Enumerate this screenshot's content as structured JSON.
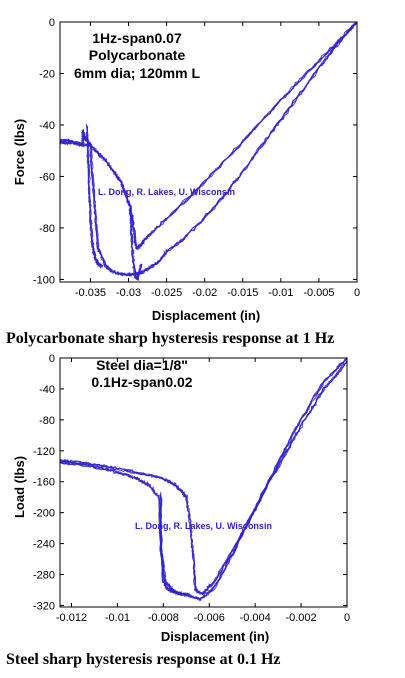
{
  "colors": {
    "trace": "#3322cc",
    "axis": "#000000",
    "credit": "#3322cc"
  },
  "chart_data": [
    {
      "type": "line",
      "annotations": [
        "1Hz-span0.07",
        "Polycarbonate",
        "6mm dia; 120mm L"
      ],
      "credit": "L. Dong, R. Lakes, U. Wisconsin",
      "xlabel": "Displacement (in)",
      "ylabel": "Force (lbs)",
      "xlim": [
        -0.039,
        0
      ],
      "ylim": [
        -101,
        0
      ],
      "xticks": [
        -0.035,
        -0.03,
        -0.025,
        -0.02,
        -0.015,
        -0.01,
        -0.005,
        0
      ],
      "xtick_labels": [
        "-0.035",
        "-0.03",
        "-0.025",
        "-0.02",
        "-0.015",
        "-0.01",
        "-0.005",
        "0"
      ],
      "yticks": [
        0,
        -20,
        -40,
        -60,
        -80,
        -100
      ],
      "ytick_labels": [
        "0",
        "-20",
        "-40",
        "-60",
        "-80",
        "-100"
      ],
      "grid": false,
      "caption": "Polycarbonate sharp hysteresis response at 1 Hz",
      "series": [
        {
          "x": [
            0,
            -0.003,
            -0.008,
            -0.013,
            -0.018,
            -0.022,
            -0.026,
            -0.028,
            -0.0285,
            -0.029,
            -0.0292,
            -0.0295,
            -0.0297,
            -0.03,
            -0.0305,
            -0.031,
            -0.0315,
            -0.032,
            -0.033,
            -0.034,
            -0.035,
            -0.0355,
            -0.0358,
            -0.036,
            -0.036,
            -0.037,
            -0.038,
            -0.039
          ],
          "y": [
            0,
            -9,
            -24,
            -40,
            -56,
            -68,
            -79,
            -85,
            -87,
            -88,
            -83,
            -76,
            -73,
            -70,
            -66,
            -62,
            -60,
            -58,
            -54,
            -51,
            -48,
            -46,
            -45,
            -42,
            -48,
            -47,
            -46,
            -46
          ]
        },
        {
          "x": [
            -0.039,
            -0.037,
            -0.035,
            -0.0345,
            -0.034,
            -0.033,
            -0.032,
            -0.031,
            -0.03,
            -0.029,
            -0.028,
            -0.027,
            -0.026,
            -0.025,
            -0.023,
            -0.02,
            -0.017,
            -0.014,
            -0.011,
            -0.008,
            -0.005,
            -0.003,
            0
          ],
          "y": [
            -47,
            -47,
            -48,
            -70,
            -88,
            -95,
            -97,
            -98,
            -98,
            -98,
            -97,
            -95,
            -93,
            -89,
            -85,
            -76,
            -66,
            -54,
            -42,
            -30,
            -18,
            -10,
            0
          ]
        },
        {
          "x": [
            -0.0355,
            -0.0352,
            -0.035,
            -0.0348,
            -0.0346,
            -0.0343,
            -0.034,
            -0.0335
          ],
          "y": [
            -40,
            -60,
            -76,
            -84,
            -89,
            -92,
            -94,
            -95
          ]
        },
        {
          "x": [
            -0.0298,
            -0.0296,
            -0.0294,
            -0.0291,
            -0.0288,
            -0.0283
          ],
          "y": [
            -73,
            -82,
            -92,
            -99,
            -100,
            -94
          ]
        }
      ]
    },
    {
      "type": "line",
      "annotations": [
        "Steel dia=1/8\"",
        "0.1Hz-span0.02"
      ],
      "credit": "L. Dong, R. Lakes, U. Wisconsin",
      "xlabel": "Displacement (in)",
      "ylabel": "Load (lbs)",
      "xlim": [
        -0.0125,
        0
      ],
      "ylim": [
        -322,
        0
      ],
      "xticks": [
        -0.012,
        -0.01,
        -0.008,
        -0.006,
        -0.004,
        -0.002,
        0
      ],
      "xtick_labels": [
        "-0.012",
        "-0.01",
        "-0.008",
        "-0.006",
        "-0.004",
        "-0.002",
        "0"
      ],
      "yticks": [
        0,
        -40,
        -80,
        -120,
        -160,
        -200,
        -240,
        -280,
        -320
      ],
      "ytick_labels": [
        "0",
        "-40",
        "-80",
        "-120",
        "-160",
        "-200",
        "-240",
        "-280",
        "-320"
      ],
      "grid": false,
      "caption": "Steel sharp hysteresis response at 0.1 Hz",
      "series": [
        {
          "x": [
            -0.0125,
            -0.012,
            -0.011,
            -0.01,
            -0.009,
            -0.008,
            -0.0075,
            -0.0072,
            -0.007,
            -0.0068,
            -0.0067,
            -0.0066,
            -0.0063,
            -0.0058,
            -0.005,
            -0.004,
            -0.003,
            -0.002,
            -0.001,
            0
          ],
          "y": [
            -133,
            -134,
            -138,
            -143,
            -149,
            -156,
            -164,
            -172,
            -180,
            -220,
            -260,
            -300,
            -305,
            -290,
            -250,
            -195,
            -135,
            -80,
            -30,
            0
          ]
        },
        {
          "x": [
            0,
            -0.001,
            -0.002,
            -0.003,
            -0.004,
            -0.005,
            -0.0058,
            -0.0064,
            -0.0068,
            -0.007,
            -0.0072,
            -0.0075,
            -0.0078,
            -0.008,
            -0.0082,
            -0.0086,
            -0.009,
            -0.0095,
            -0.0105,
            -0.0115,
            -0.0125
          ],
          "y": [
            -5,
            -40,
            -88,
            -140,
            -195,
            -255,
            -298,
            -312,
            -308,
            -306,
            -305,
            -303,
            -300,
            -290,
            -180,
            -165,
            -158,
            -152,
            -144,
            -138,
            -135
          ]
        },
        {
          "x": [
            -0.0081,
            -0.0081,
            -0.0079,
            -0.0076,
            -0.0072
          ],
          "y": [
            -175,
            -250,
            -290,
            -300,
            -306
          ]
        }
      ]
    }
  ]
}
